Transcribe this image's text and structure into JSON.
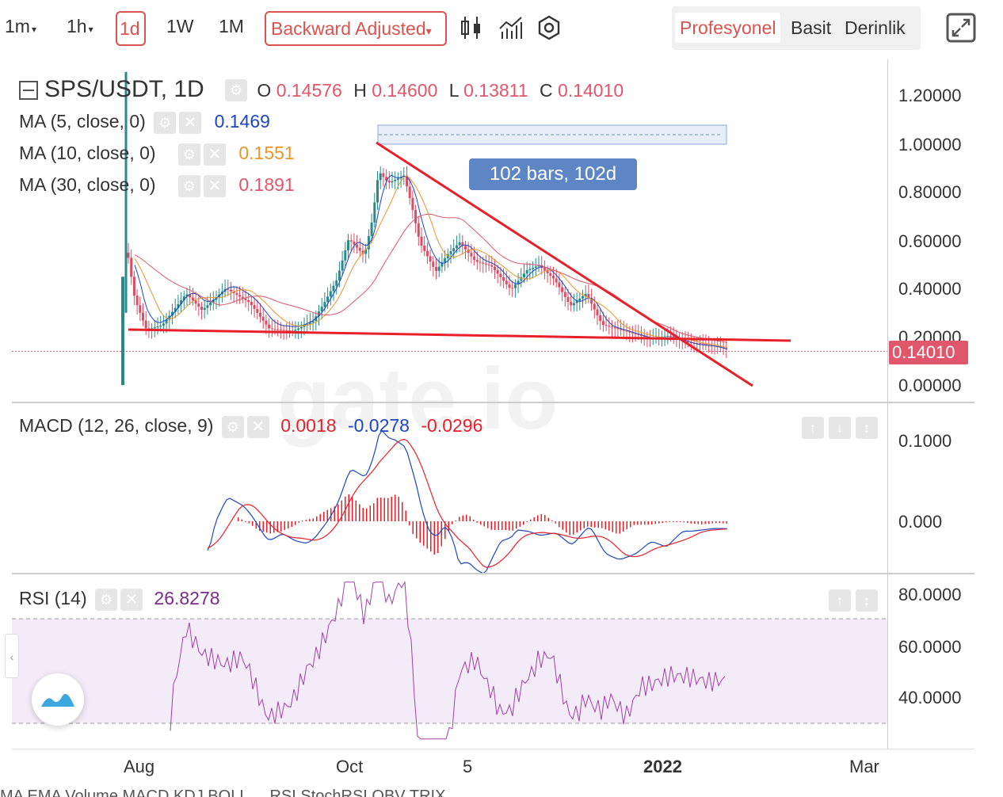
{
  "toolbar": {
    "intervals": [
      {
        "label": "1m",
        "has_caret": true
      },
      {
        "label": "1h",
        "has_caret": true
      },
      {
        "label": "1d",
        "has_caret": false,
        "active": true
      },
      {
        "label": "1W",
        "has_caret": false
      },
      {
        "label": "1M",
        "has_caret": false
      }
    ],
    "adjustment": "Backward Adjusted",
    "adjustment_caret": "▾",
    "icons": [
      "candlestick-icon",
      "indicators-icon",
      "settings-icon"
    ],
    "view_modes": [
      "Profesyonel",
      "Basit",
      "Derinlik"
    ],
    "active_view": "Profesyonel"
  },
  "main": {
    "symbol": "SPS/USDT, 1D",
    "ohlc": {
      "o_label": "O",
      "o": "0.14576",
      "h_label": "H",
      "h": "0.14600",
      "l_label": "L",
      "l": "0.13811",
      "c_label": "C",
      "c": "0.14010"
    },
    "ma": [
      {
        "label": "MA (5, close, 0)",
        "value": "0.1469",
        "color": "#1c46c4"
      },
      {
        "label": "MA (10, close, 0)",
        "value": "0.1551",
        "color": "#e8962a"
      },
      {
        "label": "MA (30, close, 0)",
        "value": "0.1891",
        "color": "#e0566b"
      }
    ],
    "price_ticks": [
      "1.20000",
      "1.00000",
      "0.80000",
      "0.60000",
      "0.40000",
      "0.20000",
      "0.00000"
    ],
    "last_price": "0.14010",
    "measure_tooltip": "102 bars, 102d",
    "watermark": "gate.io"
  },
  "macd": {
    "label": "MACD (12, 26, close, 9)",
    "v1": "0.0018",
    "v1_color": "#e8202a",
    "v2": "-0.0278",
    "v2_color": "#1c46c4",
    "v3": "-0.0296",
    "v3_color": "#e8202a",
    "ticks": [
      "0.1000",
      "0.000"
    ]
  },
  "rsi": {
    "label": "RSI (14)",
    "value": "26.8278",
    "value_color": "#7a2a8a",
    "ticks": [
      "80.0000",
      "60.0000",
      "40.0000"
    ]
  },
  "dates": [
    "Aug",
    "Oct",
    "5",
    "2022",
    "Mar"
  ],
  "bottom_bar": "MA  EMA  Volume  MACD  KDJ  BOLL  ...  RSI  StochRSI  OBV  TRIX  ..."
}
